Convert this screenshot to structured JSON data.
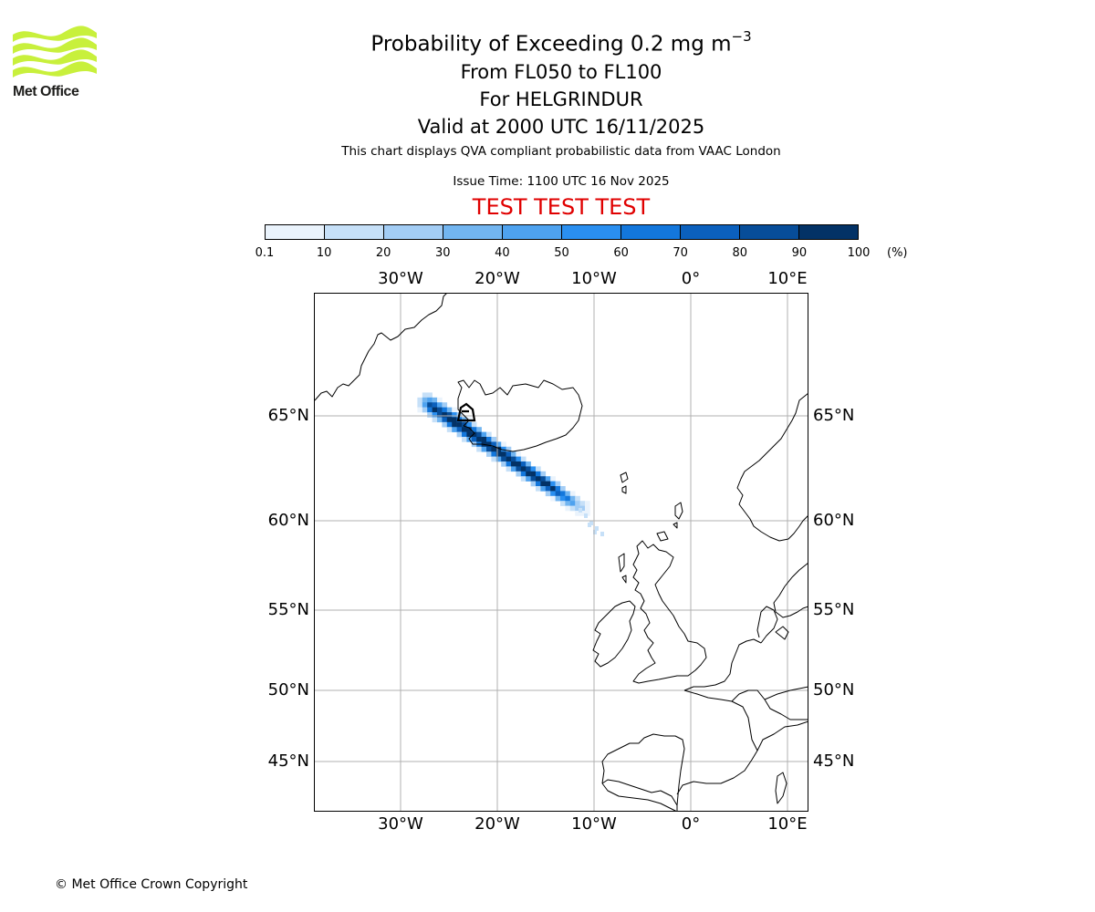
{
  "logo": {
    "text": "Met Office",
    "color": "#c8f03c"
  },
  "title": {
    "line1_prefix": "Probability of Exceeding 0.2 mg m",
    "line1_exponent": "−3",
    "line2": "From FL050 to FL100",
    "line3": "For HELGRINDUR",
    "line4": "Valid at 2000 UTC 16/11/2025"
  },
  "subtitle": "This chart displays QVA compliant probabilistic data from VAAC London",
  "issue_time": "Issue Time: 1100 UTC 16 Nov 2025",
  "test_banner": "TEST TEST TEST",
  "colorbar": {
    "ticks": [
      "0.1",
      "10",
      "20",
      "30",
      "40",
      "50",
      "60",
      "70",
      "80",
      "90",
      "100"
    ],
    "unit": "(%)",
    "colors": [
      "#eaf3fc",
      "#c6e0f8",
      "#a3cdf5",
      "#72b5f0",
      "#4ea2ef",
      "#2a8ff0",
      "#1377dc",
      "#0b60bd",
      "#074d99",
      "#033266"
    ]
  },
  "map": {
    "lon_labels_top": [
      "30°W",
      "20°W",
      "10°W",
      "0°",
      "10°E"
    ],
    "lon_labels_bottom": [
      "30°W",
      "20°W",
      "10°W",
      "0°",
      "10°E"
    ],
    "lat_labels_left": [
      "65°N",
      "60°N",
      "55°N",
      "50°N",
      "45°N"
    ],
    "lat_labels_right": [
      "65°N",
      "60°N",
      "55°N",
      "50°N",
      "45°N"
    ],
    "lon_range": [
      "39°W",
      "12°E"
    ],
    "lat_range": [
      "42°N",
      "71°N"
    ],
    "gridlines": true,
    "volcano": "HELGRINDUR",
    "plume_direction": "south-east from western Iceland",
    "plume_peak_probability_bin": "90-100"
  },
  "copyright": "© Met Office Crown Copyright"
}
